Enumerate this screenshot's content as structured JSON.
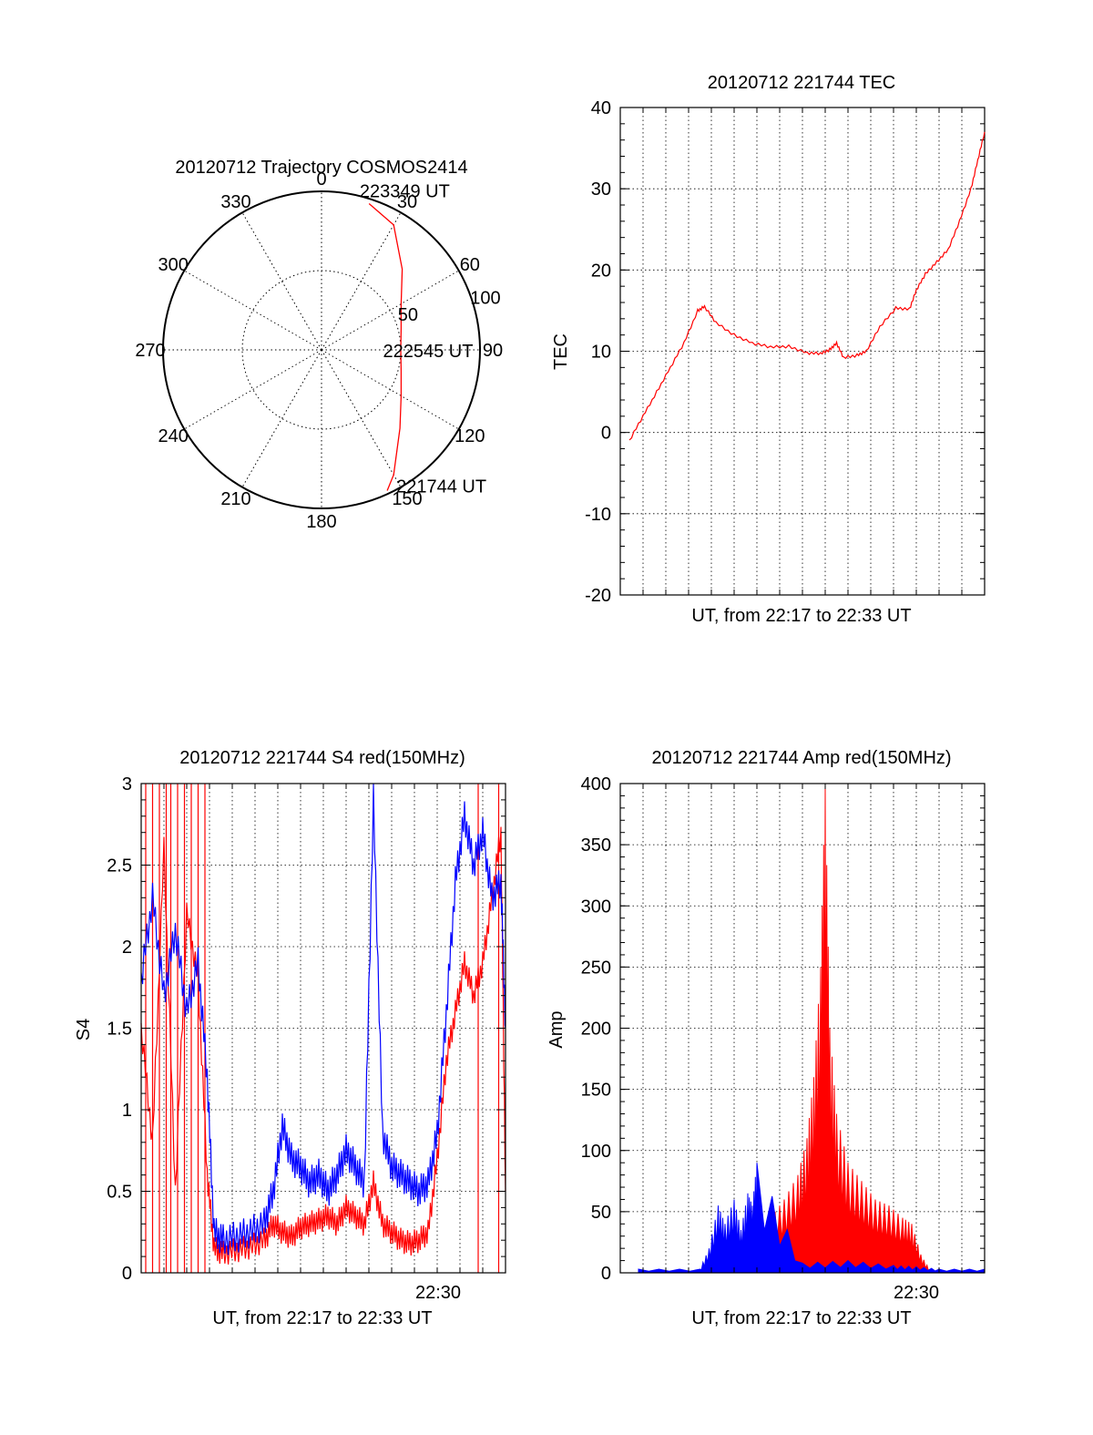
{
  "chart_data": [
    {
      "type": "polar",
      "title": "20120712 Trajectory COSMOS2414",
      "angle_labels": [
        "0",
        "30",
        "60",
        "90",
        "120",
        "150",
        "180",
        "210",
        "240",
        "270",
        "300",
        "330"
      ],
      "radial_labels": [
        "50",
        "100"
      ],
      "rlim": [
        0,
        100
      ],
      "grid": true,
      "colors": {
        "trajectory": "#ff0000"
      },
      "trajectory": [
        {
          "az": 18,
          "r": 97
        },
        {
          "az": 30,
          "r": 91
        },
        {
          "az": 45,
          "r": 72
        },
        {
          "az": 60,
          "r": 58
        },
        {
          "az": 75,
          "r": 52
        },
        {
          "az": 90,
          "r": 50
        },
        {
          "az": 105,
          "r": 52
        },
        {
          "az": 120,
          "r": 58
        },
        {
          "az": 135,
          "r": 70
        },
        {
          "az": 150,
          "r": 91
        },
        {
          "az": 155,
          "r": 98
        }
      ],
      "annotations": [
        {
          "text": "223349 UT",
          "az": 17,
          "r": 97
        },
        {
          "text": "222545 UT",
          "az": 90,
          "r": 50
        },
        {
          "text": "221744 UT",
          "az": 153,
          "r": 97
        }
      ]
    },
    {
      "type": "line",
      "title": "20120712 221744 TEC",
      "xlabel": "UT, from 22:17 to 22:33 UT",
      "ylabel": "TEC",
      "xlim": [
        0,
        16
      ],
      "ylim": [
        -20,
        40
      ],
      "yticks": [
        -20,
        -10,
        0,
        10,
        20,
        30,
        40
      ],
      "grid": true,
      "series": [
        {
          "color": "#ff0000",
          "x": [
            0.4,
            1.0,
            1.6,
            2.2,
            2.8,
            3.4,
            3.7,
            4.2,
            5.0,
            5.8,
            6.6,
            7.4,
            8.2,
            8.8,
            9.2,
            9.5,
            9.8,
            10.4,
            10.8,
            11.4,
            12.1,
            12.7,
            13.0,
            13.4,
            13.9,
            14.4,
            14.9,
            15.4,
            15.7,
            16.0
          ],
          "y": [
            -1,
            2,
            5,
            8,
            11,
            15,
            15.5,
            13.5,
            12,
            11,
            10.5,
            10.6,
            9.8,
            9.7,
            10.2,
            11,
            9.2,
            9.5,
            10,
            13,
            15.3,
            15.2,
            17.5,
            19.5,
            21,
            22.5,
            26,
            30,
            33.5,
            37
          ]
        }
      ]
    },
    {
      "type": "line",
      "title": "20120712 221744 S4 red(150MHz)",
      "xlabel": "UT, from 22:17 to 22:33 UT",
      "ylabel": "S4",
      "xlim": [
        0,
        16
      ],
      "ylim": [
        0,
        3
      ],
      "yticks": [
        "0",
        "0.5",
        "1",
        "1.5",
        "2",
        "2.5",
        "3"
      ],
      "xtick_label": "22:30",
      "grid": true,
      "series": [
        {
          "color": "#0000ff",
          "x": [
            0,
            0.5,
            1.0,
            1.5,
            2.0,
            2.5,
            2.9,
            3.2,
            3.6,
            4.2,
            4.8,
            5.4,
            5.8,
            6.2,
            6.6,
            7.0,
            7.4,
            7.8,
            8.2,
            8.6,
            9.0,
            9.4,
            9.8,
            10.2,
            10.6,
            11.0,
            11.4,
            11.8,
            12.2,
            12.6,
            13.0,
            13.4,
            13.8,
            14.2,
            14.6,
            15.0,
            15.4,
            15.8,
            16.0
          ],
          "y": [
            1.8,
            2.3,
            1.7,
            2.1,
            1.6,
            1.9,
            1.2,
            0.25,
            0.2,
            0.22,
            0.25,
            0.3,
            0.5,
            0.9,
            0.7,
            0.65,
            0.55,
            0.6,
            0.5,
            0.6,
            0.75,
            0.65,
            0.55,
            2.9,
            0.85,
            0.65,
            0.6,
            0.55,
            0.5,
            0.55,
            0.85,
            1.6,
            2.4,
            2.8,
            2.5,
            2.7,
            2.3,
            2.4,
            1.5
          ]
        },
        {
          "color": "#ff0000",
          "x": [
            0,
            0.5,
            1.0,
            1.5,
            2.0,
            2.5,
            2.9,
            3.2,
            3.6,
            4.2,
            4.8,
            5.4,
            5.8,
            6.2,
            6.6,
            7.0,
            7.4,
            7.8,
            8.2,
            8.6,
            9.0,
            9.4,
            9.8,
            10.2,
            10.6,
            11.0,
            11.4,
            11.8,
            12.2,
            12.6,
            13.0,
            13.4,
            13.8,
            14.2,
            14.6,
            15.0,
            15.4,
            15.8,
            16.0
          ],
          "y": [
            1.5,
            0.8,
            2.6,
            0.5,
            2.2,
            1.8,
            0.6,
            0.15,
            0.12,
            0.14,
            0.16,
            0.2,
            0.3,
            0.25,
            0.22,
            0.28,
            0.3,
            0.32,
            0.35,
            0.3,
            0.4,
            0.35,
            0.3,
            0.55,
            0.3,
            0.25,
            0.2,
            0.18,
            0.2,
            0.25,
            0.7,
            1.3,
            1.6,
            1.9,
            1.7,
            1.9,
            2.3,
            2.7,
            0.5
          ]
        }
      ],
      "spikes_red_x": [
        0.2,
        0.5,
        0.8,
        1.1,
        1.3,
        1.6,
        1.9,
        2.2,
        2.5,
        2.8,
        14.8,
        15.7
      ]
    },
    {
      "type": "line",
      "title": "20120712 221744 Amp red(150MHz)",
      "xlabel": "UT, from 22:17 to 22:33 UT",
      "ylabel": "Amp",
      "xlim": [
        0,
        16
      ],
      "ylim": [
        0,
        400
      ],
      "yticks": [
        0,
        50,
        100,
        150,
        200,
        250,
        300,
        350,
        400
      ],
      "xtick_label": "22:30",
      "grid": true,
      "series": [
        {
          "color": "#0000ff",
          "x": [
            0.8,
            3.5,
            3.9,
            4.3,
            4.6,
            5.0,
            5.3,
            5.6,
            5.8,
            6.0,
            8.0,
            10.0,
            12.0,
            13.0,
            14.0,
            16.0
          ],
          "y": [
            3,
            3,
            20,
            55,
            40,
            60,
            35,
            65,
            55,
            90,
            8,
            10,
            6,
            5,
            3,
            3
          ]
        },
        {
          "color": "#ff0000",
          "x": [
            3.7,
            4.2,
            5.0,
            6.0,
            6.6,
            7.2,
            7.8,
            8.2,
            8.5,
            8.8,
            9.0,
            9.2,
            9.5,
            10.0,
            10.6,
            11.2,
            11.8,
            12.4,
            12.8,
            13.2,
            13.6
          ],
          "y": [
            2,
            8,
            12,
            25,
            45,
            60,
            80,
            110,
            160,
            250,
            400,
            200,
            130,
            90,
            75,
            60,
            55,
            45,
            40,
            15,
            2
          ]
        }
      ]
    }
  ]
}
